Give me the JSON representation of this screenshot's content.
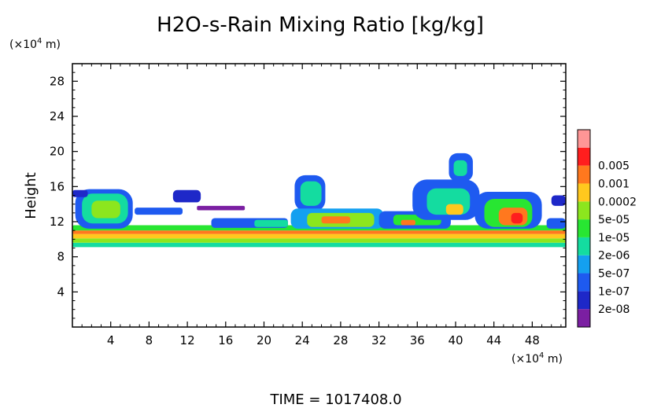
{
  "chart_data": {
    "type": "heatmap",
    "title": "H2O-s-Rain Mixing Ratio [kg/kg]",
    "ylabel": "Height",
    "y_unit_prefix": "(×10",
    "y_unit_exp": "4",
    "y_unit_suffix": " m)",
    "x_unit_prefix": "(×10",
    "x_unit_exp": "4",
    "x_unit_suffix": " m)",
    "xlim": [
      0,
      51.5
    ],
    "ylim": [
      0,
      30
    ],
    "x_ticks": [
      4,
      8,
      12,
      16,
      20,
      24,
      28,
      32,
      36,
      40,
      44,
      48
    ],
    "y_ticks": [
      4,
      8,
      12,
      16,
      20,
      24,
      28
    ],
    "time_label": "TIME",
    "time_value": "1017408.0",
    "colorbar": {
      "colors": [
        "#7b1fa2",
        "#1e28c8",
        "#1e5af0",
        "#14a0f0",
        "#14dca0",
        "#28e632",
        "#8ce61e",
        "#ffc81e",
        "#ff781e",
        "#ff1e1e",
        "#ff9696"
      ],
      "labels": [
        "2e-08",
        "1e-07",
        "5e-07",
        "2e-06",
        "1e-05",
        "5e-05",
        "0.0002",
        "0.001",
        "0.005"
      ]
    },
    "regions": [
      {
        "level": 4,
        "x0": 0,
        "x1": 51.5,
        "y0": 9.1,
        "y1": 9.6
      },
      {
        "level": 6,
        "x0": 0,
        "x1": 51.5,
        "y0": 9.6,
        "y1": 10.1
      },
      {
        "level": 7,
        "x0": 0,
        "x1": 51.5,
        "y0": 10.1,
        "y1": 10.6
      },
      {
        "level": 8,
        "x0": 0,
        "x1": 51.5,
        "y0": 10.6,
        "y1": 11.0
      },
      {
        "level": 5,
        "x0": 0,
        "x1": 51.5,
        "y0": 11.0,
        "y1": 11.6
      },
      {
        "level": 2,
        "x0": 0.3,
        "x1": 6.3,
        "y0": 11.2,
        "y1": 15.7
      },
      {
        "level": 4,
        "x0": 1.0,
        "x1": 5.8,
        "y0": 11.8,
        "y1": 15.2
      },
      {
        "level": 6,
        "x0": 2.0,
        "x1": 5.0,
        "y0": 12.4,
        "y1": 14.4
      },
      {
        "level": 1,
        "x0": 0.0,
        "x1": 1.6,
        "y0": 14.8,
        "y1": 15.6
      },
      {
        "level": 1,
        "x0": 10.5,
        "x1": 13.4,
        "y0": 14.2,
        "y1": 15.6
      },
      {
        "level": 2,
        "x0": 6.5,
        "x1": 11.5,
        "y0": 12.8,
        "y1": 13.6
      },
      {
        "level": 0,
        "x0": 13.0,
        "x1": 18.0,
        "y0": 13.3,
        "y1": 13.8
      },
      {
        "level": 2,
        "x0": 14.5,
        "x1": 22.5,
        "y0": 11.3,
        "y1": 12.4
      },
      {
        "level": 4,
        "x0": 19.0,
        "x1": 22.5,
        "y0": 11.4,
        "y1": 12.2
      },
      {
        "level": 2,
        "x0": 23.2,
        "x1": 26.4,
        "y0": 13.2,
        "y1": 17.3
      },
      {
        "level": 4,
        "x0": 23.8,
        "x1": 26.0,
        "y0": 13.8,
        "y1": 16.6
      },
      {
        "level": 3,
        "x0": 22.8,
        "x1": 32.5,
        "y0": 11.2,
        "y1": 13.5
      },
      {
        "level": 6,
        "x0": 24.5,
        "x1": 31.5,
        "y0": 11.4,
        "y1": 13.0
      },
      {
        "level": 8,
        "x0": 26.0,
        "x1": 29.0,
        "y0": 11.8,
        "y1": 12.6
      },
      {
        "level": 2,
        "x0": 32.0,
        "x1": 39.5,
        "y0": 11.2,
        "y1": 13.2
      },
      {
        "level": 5,
        "x0": 33.5,
        "x1": 38.5,
        "y0": 11.6,
        "y1": 12.8
      },
      {
        "level": 8,
        "x0": 34.3,
        "x1": 35.8,
        "y0": 11.6,
        "y1": 12.2
      },
      {
        "level": 2,
        "x0": 35.5,
        "x1": 42.5,
        "y0": 12.2,
        "y1": 16.8
      },
      {
        "level": 4,
        "x0": 37.0,
        "x1": 41.5,
        "y0": 12.8,
        "y1": 15.8
      },
      {
        "level": 7,
        "x0": 39.0,
        "x1": 40.8,
        "y0": 12.8,
        "y1": 14.0
      },
      {
        "level": 2,
        "x0": 39.3,
        "x1": 41.8,
        "y0": 16.6,
        "y1": 19.8
      },
      {
        "level": 4,
        "x0": 39.8,
        "x1": 41.2,
        "y0": 17.2,
        "y1": 19.0
      },
      {
        "level": 2,
        "x0": 42.0,
        "x1": 49.0,
        "y0": 11.2,
        "y1": 15.4
      },
      {
        "level": 5,
        "x0": 43.0,
        "x1": 48.0,
        "y0": 11.4,
        "y1": 14.6
      },
      {
        "level": 8,
        "x0": 44.5,
        "x1": 47.5,
        "y0": 11.6,
        "y1": 13.6
      },
      {
        "level": 9,
        "x0": 45.8,
        "x1": 47.0,
        "y0": 11.8,
        "y1": 13.0
      },
      {
        "level": 2,
        "x0": 49.5,
        "x1": 51.5,
        "y0": 11.2,
        "y1": 12.4
      },
      {
        "level": 1,
        "x0": 50.0,
        "x1": 51.5,
        "y0": 13.8,
        "y1": 15.0
      }
    ]
  }
}
